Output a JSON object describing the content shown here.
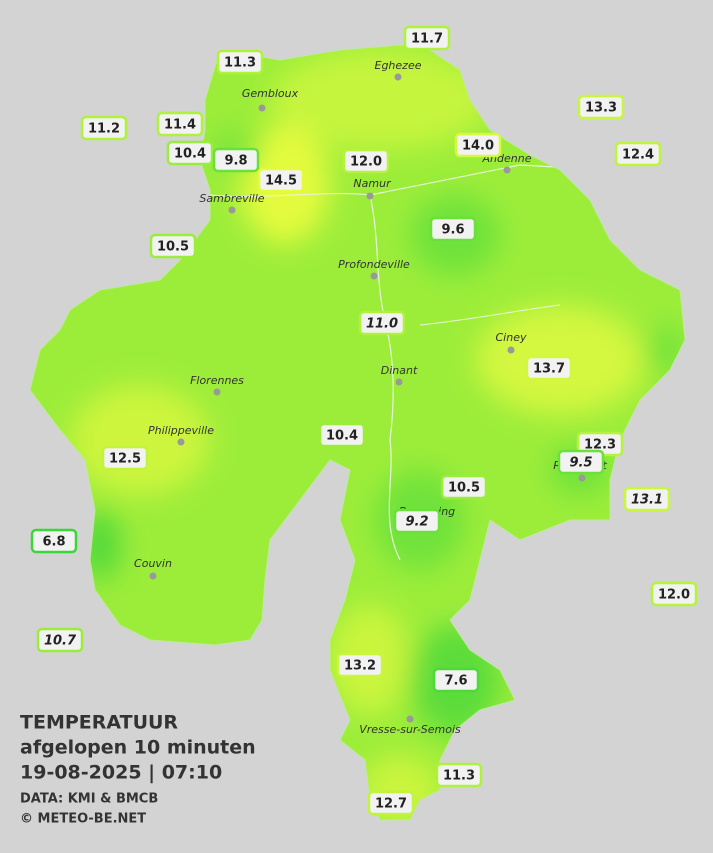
{
  "title": {
    "line1": "TEMPERATUUR",
    "line2": "afgelopen 10 minuten",
    "timestamp": "19-08-2025  |  07:10",
    "source": "DATA: KMI & BMCB",
    "copyright": "© METEO-BE.NET"
  },
  "towns": [
    "Eghezee",
    "Gembloux",
    "Andenne",
    "Namur",
    "Sambreville",
    "Profondeville",
    "Ciney",
    "Dinant",
    "Florennes",
    "Philippeville",
    "Rochefort",
    "Beauraing",
    "Couvin",
    "Vresse-sur-Semois"
  ],
  "stations": [
    "11.7",
    "11.3",
    "13.3",
    "11.2",
    "11.4",
    "14.0",
    "12.4",
    "10.4",
    "9.8",
    "12.0",
    "14.5",
    "9.6",
    "10.5",
    "11.0",
    "13.7",
    "10.4",
    "12.3",
    "12.5",
    "9.5",
    "10.5",
    "13.1",
    "9.2",
    "6.8",
    "12.0",
    "10.7",
    "13.2",
    "7.6",
    "11.3",
    "12.7"
  ]
}
